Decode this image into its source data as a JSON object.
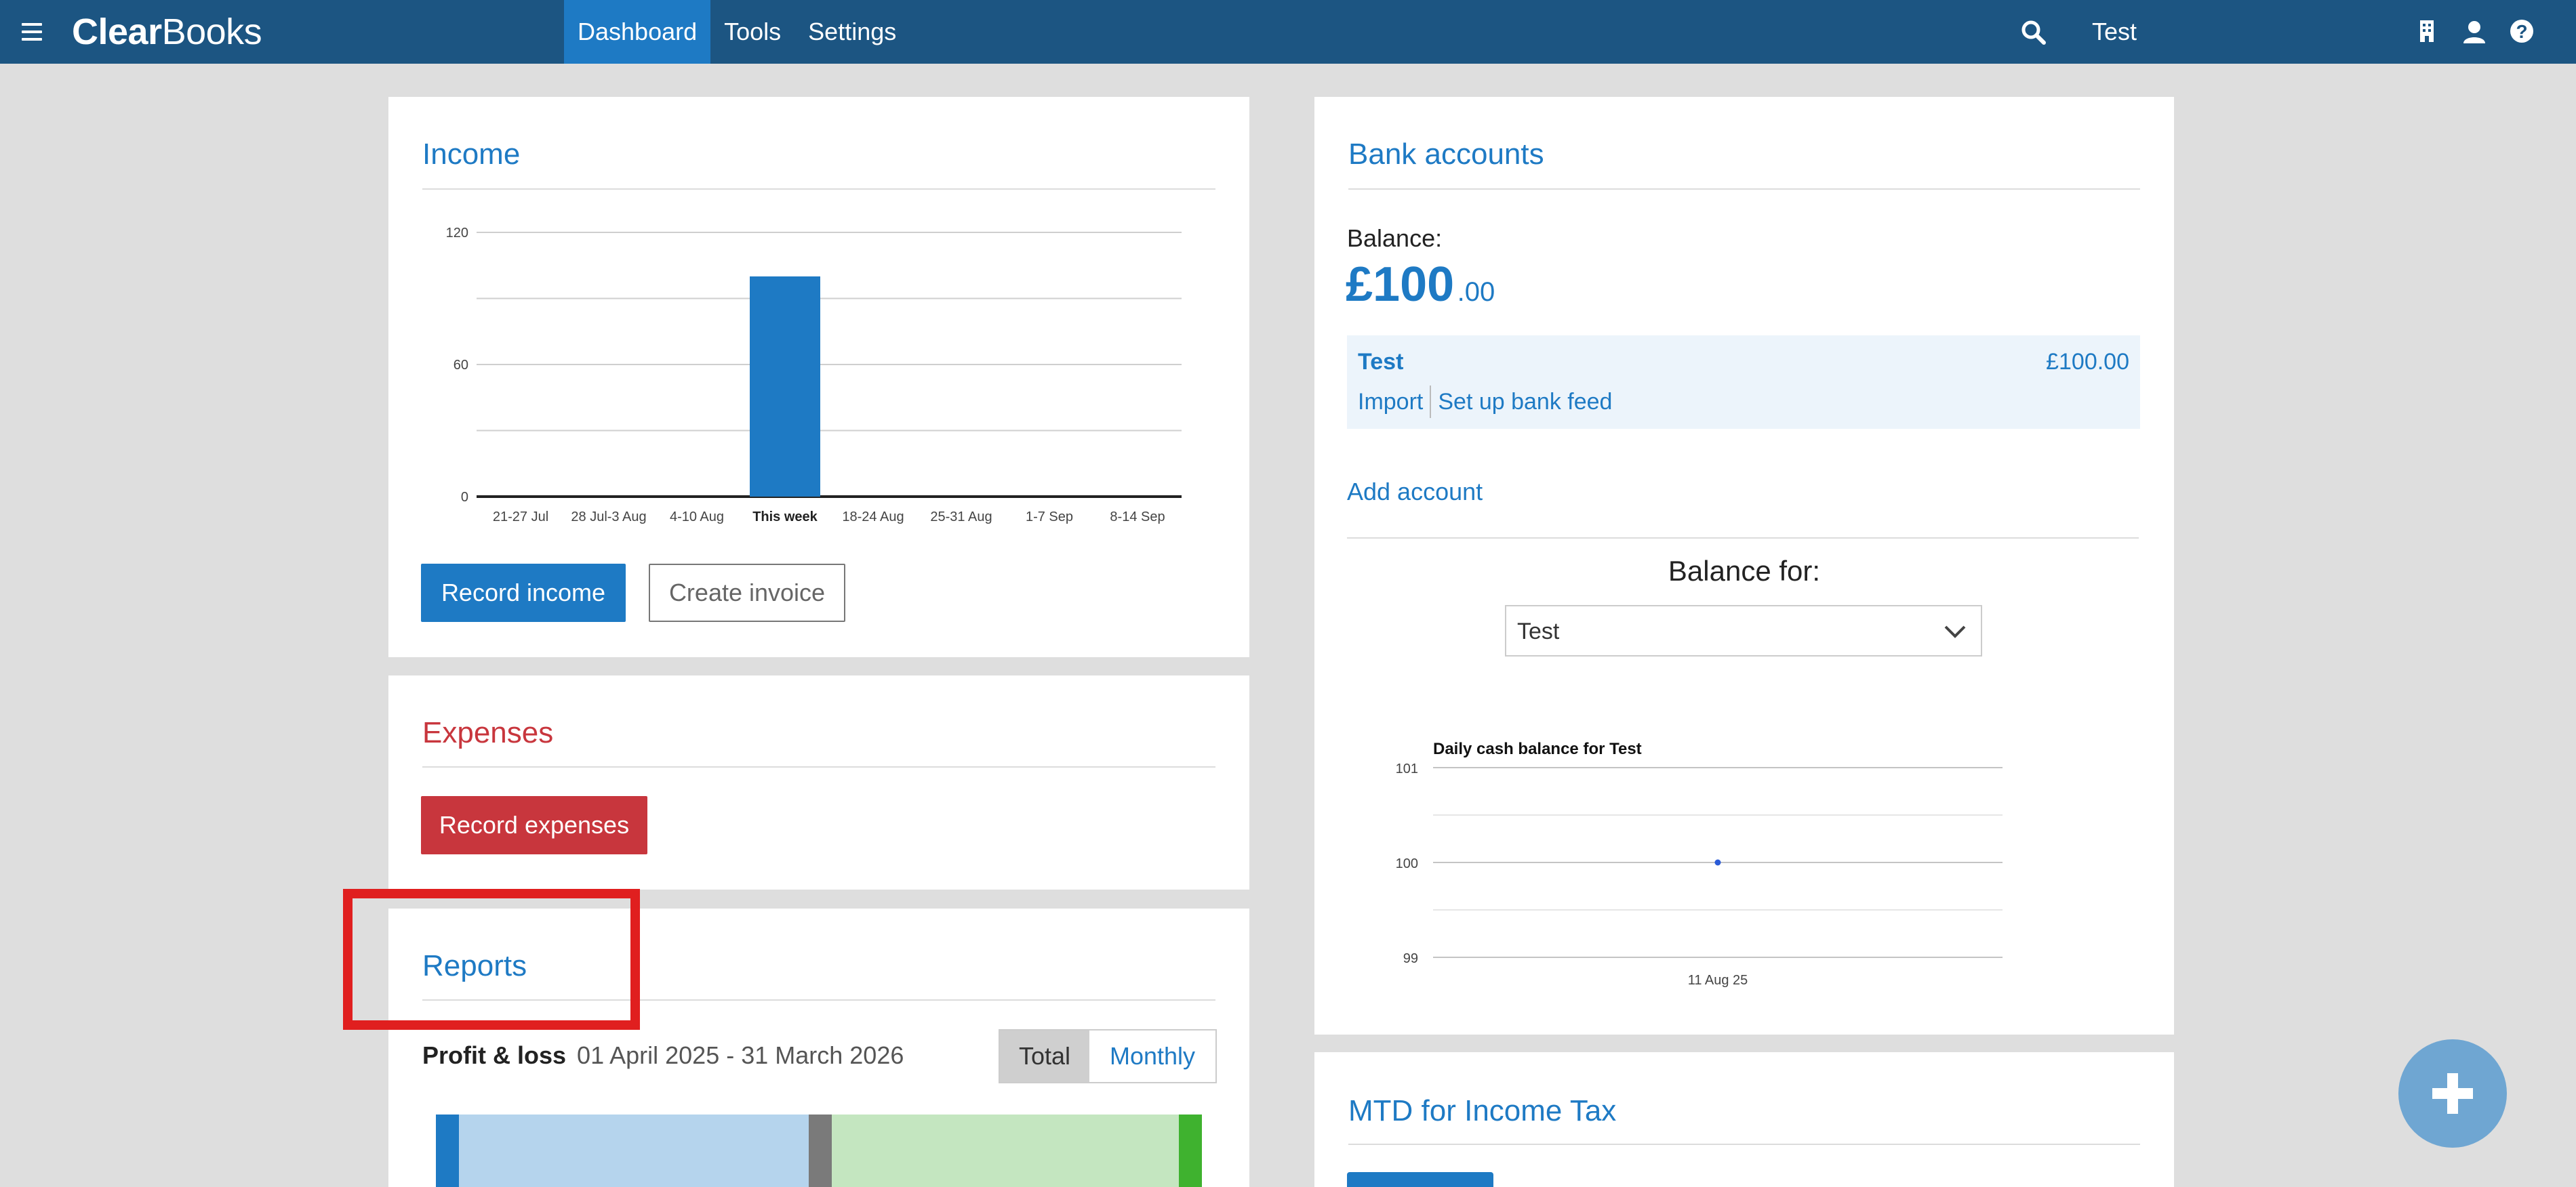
{
  "app": {
    "logo_bold": "Clear",
    "logo_rest": "Books",
    "company": "Test"
  },
  "nav": {
    "items": [
      "Dashboard",
      "Tools",
      "Settings"
    ],
    "active": "Dashboard"
  },
  "income": {
    "title": "Income",
    "chart_data": {
      "type": "bar",
      "categories": [
        "21-27 Jul",
        "28 Jul-3 Aug",
        "4-10 Aug",
        "This week",
        "18-24 Aug",
        "25-31 Aug",
        "1-7 Sep",
        "8-14 Sep"
      ],
      "values": [
        0,
        0,
        0,
        100,
        0,
        0,
        0,
        0
      ],
      "highlight_category": "This week",
      "ylim": [
        0,
        120
      ],
      "yticks": [
        "120",
        "60",
        "0"
      ],
      "color": "#1e7ac4"
    },
    "record_label": "Record income",
    "invoice_label": "Create invoice"
  },
  "expenses": {
    "title": "Expenses",
    "record_label": "Record expenses"
  },
  "reports": {
    "title": "Reports",
    "pl_label": "Profit & loss",
    "pl_range": "01 April 2025 - 31 March 2026",
    "toggle": [
      "Total",
      "Monthly"
    ],
    "toggle_active": "Total"
  },
  "bank": {
    "title": "Bank accounts",
    "balance_label": "Balance:",
    "balance_major": "£100",
    "balance_minor": ".00",
    "account": {
      "name": "Test",
      "amount": "£100.00",
      "import_label": "Import",
      "feed_label": "Set up bank feed"
    },
    "add_account_label": "Add account",
    "balance_for_label": "Balance for:",
    "selected_account": "Test",
    "chart_data": {
      "type": "scatter",
      "title": "Daily cash balance for Test",
      "x": [
        "11 Aug 25"
      ],
      "y": [
        100
      ],
      "ylim": [
        99,
        101
      ],
      "yticks": [
        "101",
        "100",
        "99"
      ],
      "color": "#2a5bd7"
    }
  },
  "mtd": {
    "title": "MTD for Income Tax"
  }
}
